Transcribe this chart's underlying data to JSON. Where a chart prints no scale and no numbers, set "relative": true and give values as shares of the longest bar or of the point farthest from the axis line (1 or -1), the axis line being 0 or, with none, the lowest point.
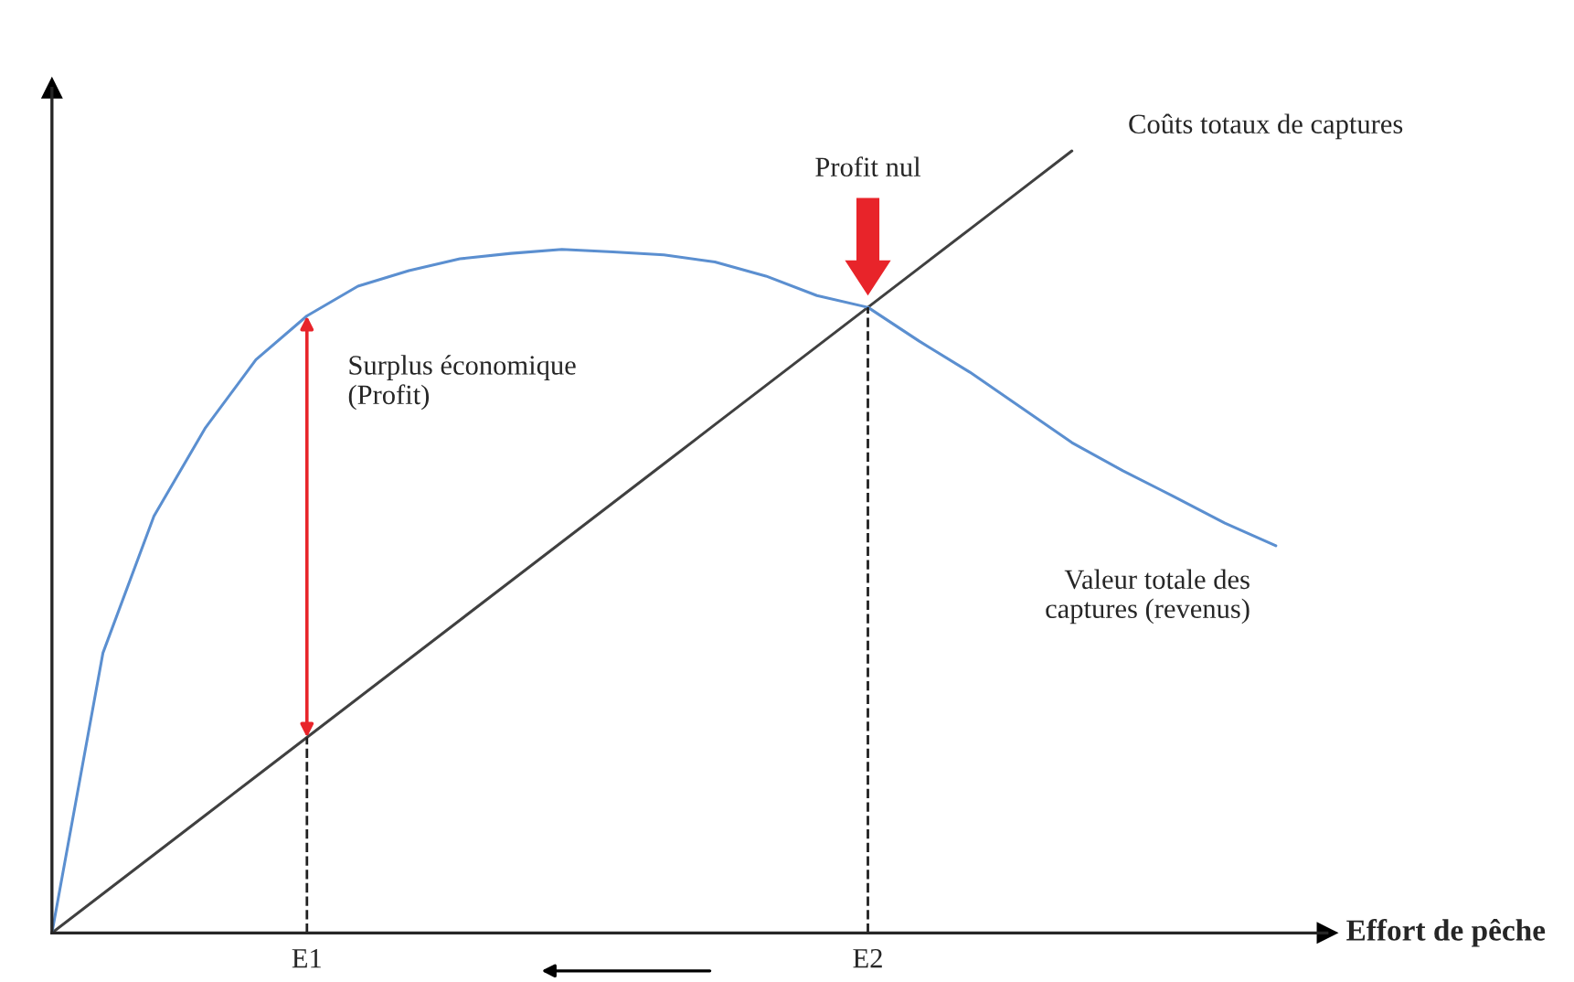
{
  "chart_data": {
    "type": "line",
    "relative": true,
    "xlabel": "Effort de pêche",
    "categories": [
      null,
      null,
      null,
      null,
      null,
      "E1",
      null,
      null,
      null,
      null,
      null,
      null,
      null,
      null,
      null,
      null,
      "E2",
      null,
      null,
      null,
      null,
      null,
      null,
      null,
      null
    ],
    "grid": false,
    "legend": false,
    "marker": "none",
    "series": [
      {
        "name": "Coûts totaux de captures",
        "color": "#404040",
        "values": [
          0,
          0.05,
          0.1,
          0.15,
          0.2,
          0.25,
          0.3,
          0.35,
          0.4,
          0.45,
          0.5,
          0.55,
          0.6,
          0.65,
          0.7,
          0.75,
          0.8,
          0.85,
          0.9,
          0.95,
          1,
          null,
          null,
          null,
          null
        ]
      },
      {
        "name": "Valeur totale des captures (revenus)",
        "color": "#5b8fd0",
        "values": [
          0,
          0.358,
          0.533,
          0.645,
          0.733,
          0.789,
          0.827,
          0.847,
          0.862,
          0.869,
          0.874,
          0.871,
          0.867,
          0.858,
          0.84,
          0.815,
          0.8,
          0.757,
          0.717,
          0.672,
          0.627,
          0.591,
          0.558,
          0.524,
          0.495
        ]
      }
    ],
    "ref_lines": [
      {
        "axis": "x",
        "value": "E1",
        "line_style": "dashed",
        "color": "#202020"
      },
      {
        "axis": "x",
        "value": "E2",
        "line_style": "dashed",
        "color": "#202020"
      }
    ],
    "annotations": [
      {
        "text": "Surplus économique\n(Profit)",
        "x": "E1",
        "y": 0.789
      },
      "Profit nul"
    ]
  }
}
